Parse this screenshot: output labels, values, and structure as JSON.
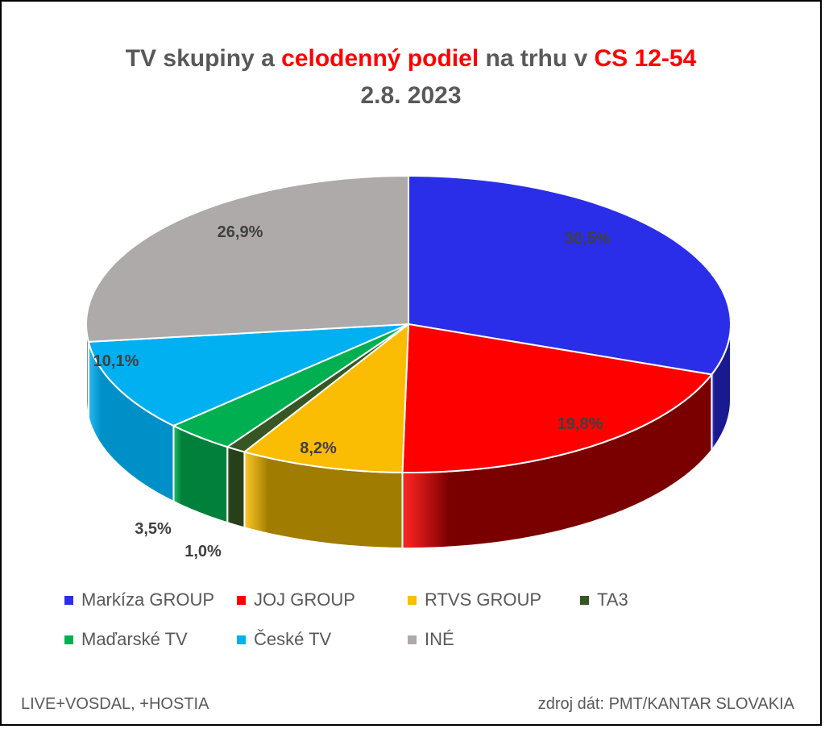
{
  "title": {
    "part1": "TV skupiny a ",
    "part2": "celodenný podiel",
    "part3": " na trhu v ",
    "part4": "CS 12-54",
    "line2": "2.8. 2023"
  },
  "chart_data": {
    "type": "pie",
    "title": "TV skupiny a celodenný podiel na trhu v CS 12-54 2.8. 2023",
    "style": "3d",
    "legend_position": "bottom",
    "categories": [
      "Markíza GROUP",
      "JOJ GROUP",
      "RTVS GROUP",
      "TA3",
      "Maďarské  TV",
      "České  TV",
      "INÉ"
    ],
    "values": [
      30.5,
      19.8,
      8.2,
      1.0,
      3.5,
      10.1,
      26.9
    ],
    "labels": [
      "30,5%",
      "19,8%",
      "8,2%",
      "1,0%",
      "3,5%",
      "10,1%",
      "26,9%"
    ],
    "colors": [
      "#2b2ee8",
      "#ff0000",
      "#fbbc04",
      "#375623",
      "#00b050",
      "#00b0f0",
      "#aeaaaa"
    ],
    "wall_colors": [
      "#1a1a90",
      "#7a0000",
      "#a07c00",
      "#26401a",
      "#00803a",
      "#0090c8",
      "#807c7c"
    ]
  },
  "footer": {
    "left": "LIVE+VOSDAL, +HOSTIA",
    "right": "zdroj dát: PMT/KANTAR SLOVAKIA"
  }
}
